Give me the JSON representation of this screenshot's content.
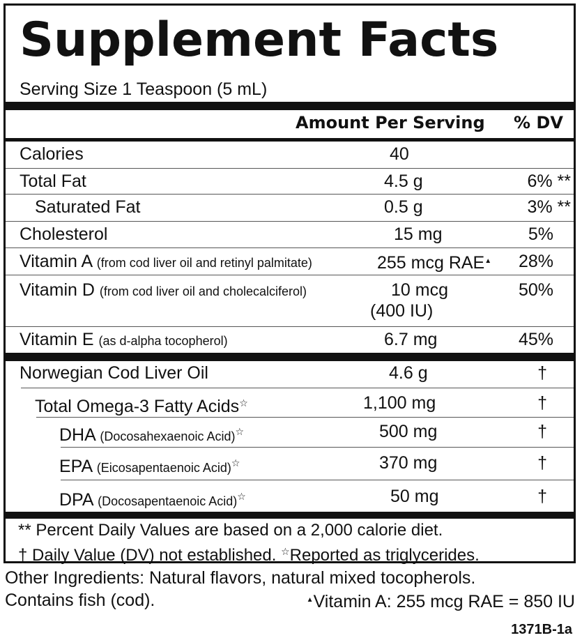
{
  "title": "Supplement Facts",
  "serving_size": "Serving Size 1 Teaspoon (5 mL)",
  "header": {
    "amount": "Amount Per Serving",
    "dv": "% DV"
  },
  "nutrients": [
    {
      "name": "Calories",
      "note": "",
      "amount": "40",
      "dv": ""
    },
    {
      "name": "Total Fat",
      "note": "",
      "amount": "4.5 g",
      "dv": "6% **"
    },
    {
      "name": "Saturated Fat",
      "note": "",
      "amount": "0.5 g",
      "dv": "3% **"
    },
    {
      "name": "Cholesterol",
      "note": "",
      "amount": "15 mg",
      "dv": "5%"
    },
    {
      "name": "Vitamin A",
      "note": "(from cod liver oil and retinyl palmitate)",
      "amount": "255 mcg RAE",
      "dv": "28%"
    },
    {
      "name": "Vitamin D",
      "note": "(from cod liver oil and cholecalciferol)",
      "amount": "10 mcg",
      "amount2": "(400 IU)",
      "dv": "50%"
    },
    {
      "name": "Vitamin E",
      "note": "(as d-alpha tocopherol)",
      "amount": "6.7 mg",
      "dv": "45%"
    }
  ],
  "oils": [
    {
      "name": "Norwegian Cod Liver Oil",
      "note": "",
      "amount": "4.6 g",
      "dv": "†"
    },
    {
      "name": "Total Omega-3 Fatty Acids",
      "note": "",
      "amount": "1,100 mg",
      "dv": "†"
    },
    {
      "name": "DHA",
      "note": "(Docosahexaenoic Acid)",
      "amount": "500 mg",
      "dv": "†"
    },
    {
      "name": "EPA",
      "note": "(Eicosapentaenoic Acid)",
      "amount": "370 mg",
      "dv": "†"
    },
    {
      "name": "DPA",
      "note": "(Docosapentaenoic Acid)",
      "amount": "50 mg",
      "dv": "†"
    }
  ],
  "footnotes": {
    "line1": "** Percent Daily Values are based on a 2,000 calorie diet.",
    "line2a": "† Daily Value (DV) not established.",
    "line2b": "Reported as triglycerides."
  },
  "other_ingredients": "Other Ingredients: Natural flavors, natural mixed tocopherols.",
  "contains": "Contains fish (cod).",
  "vitamin_a_note": "Vitamin A: 255 mcg RAE = 850 IU",
  "code": "1371B-1a"
}
